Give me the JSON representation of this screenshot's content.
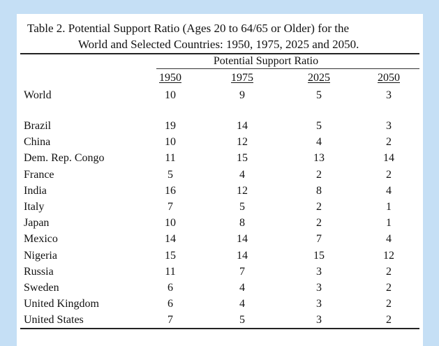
{
  "table": {
    "title_line1": "Table 2.  Potential Support Ratio (Ages 20 to 64/65 or Older) for the",
    "title_line2": "World and Selected Countries: 1950, 1975, 2025 and 2050.",
    "group_header": "Potential Support Ratio",
    "years": [
      "1950",
      "1975",
      "2025",
      "2050"
    ],
    "world": {
      "label": "World",
      "values": [
        "10",
        "9",
        "5",
        "3"
      ]
    },
    "countries": [
      {
        "label": "Brazil",
        "values": [
          "19",
          "14",
          "5",
          "3"
        ]
      },
      {
        "label": "China",
        "values": [
          "10",
          "12",
          "4",
          "2"
        ]
      },
      {
        "label": "Dem. Rep. Congo",
        "values": [
          "11",
          "15",
          "13",
          "14"
        ]
      },
      {
        "label": "France",
        "values": [
          "5",
          "4",
          "2",
          "2"
        ]
      },
      {
        "label": "India",
        "values": [
          "16",
          "12",
          "8",
          "4"
        ]
      },
      {
        "label": "Italy",
        "values": [
          "7",
          "5",
          "2",
          "1"
        ]
      },
      {
        "label": "Japan",
        "values": [
          "10",
          "8",
          "2",
          "1"
        ]
      },
      {
        "label": "Mexico",
        "values": [
          "14",
          "14",
          "7",
          "4"
        ]
      },
      {
        "label": "Nigeria",
        "values": [
          "15",
          "14",
          "15",
          "12"
        ]
      },
      {
        "label": "Russia",
        "values": [
          "11",
          "7",
          "3",
          "2"
        ]
      },
      {
        "label": "Sweden",
        "values": [
          "6",
          "4",
          "3",
          "2"
        ]
      },
      {
        "label": "United Kingdom",
        "values": [
          "6",
          "4",
          "3",
          "2"
        ]
      },
      {
        "label": "United States",
        "values": [
          "7",
          "5",
          "3",
          "2"
        ]
      }
    ]
  },
  "colors": {
    "background": "#c5dff5",
    "paper": "#ffffff",
    "text": "#111111"
  }
}
